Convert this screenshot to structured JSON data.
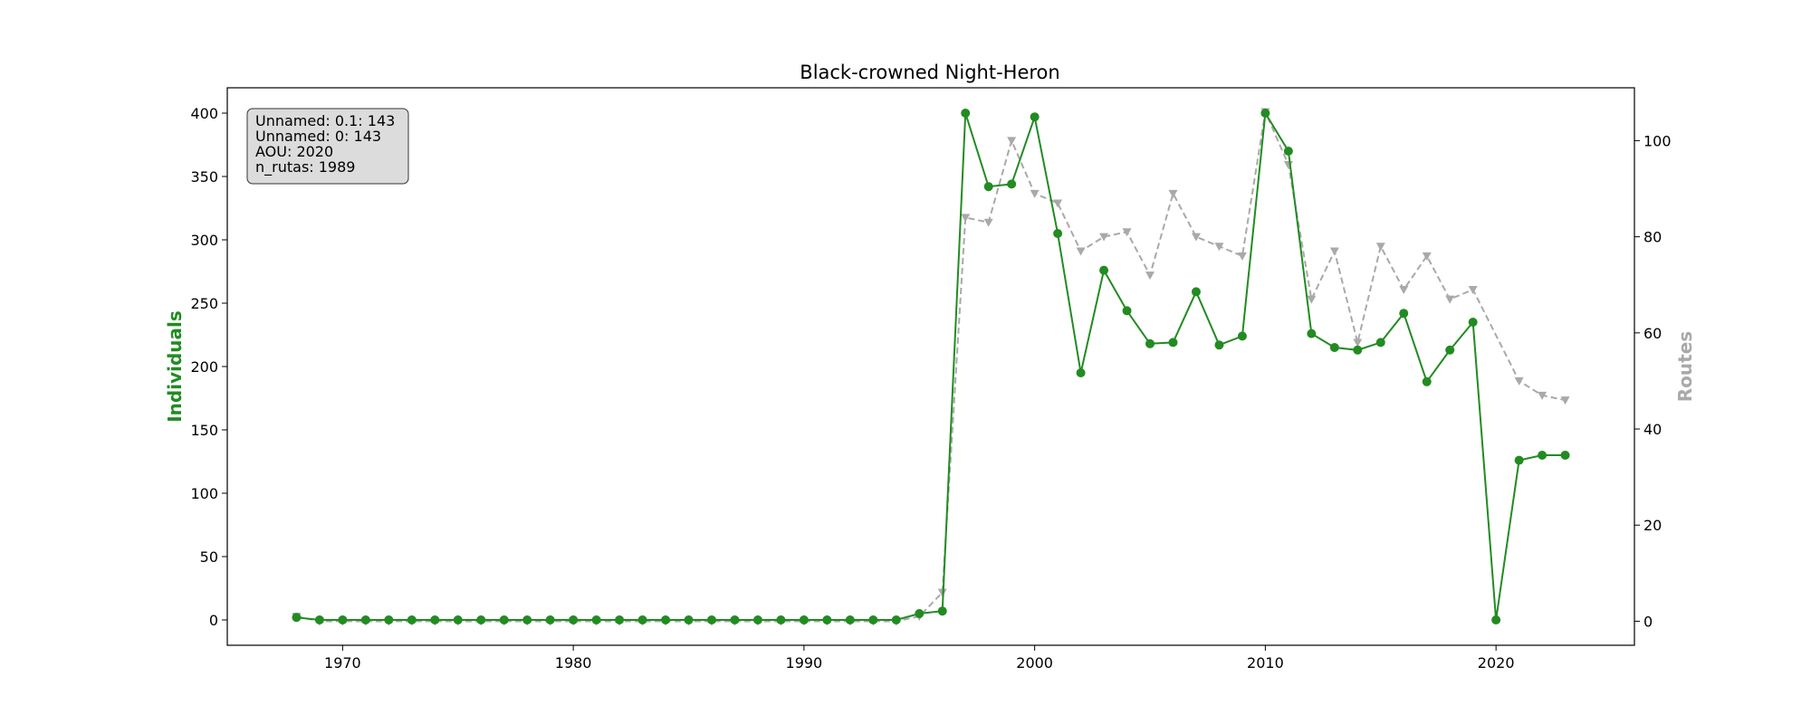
{
  "chart_data": {
    "type": "line",
    "title": "Black-crowned Night-Heron",
    "xlabel": "",
    "ylabel_left": "Individuals",
    "ylabel_right": "Routes",
    "xlim": [
      1965,
      2026
    ],
    "ylim_left": [
      -20,
      420
    ],
    "ylim_right": [
      -5,
      111
    ],
    "x_ticks": [
      1970,
      1980,
      1990,
      2000,
      2010,
      2020
    ],
    "y_ticks_left": [
      0,
      50,
      100,
      150,
      200,
      250,
      300,
      350,
      400
    ],
    "y_ticks_right": [
      0,
      20,
      40,
      60,
      80,
      100
    ],
    "grid": false,
    "info_box": {
      "position": "top-left",
      "lines": [
        "Unnamed: 0.1: 143",
        "Unnamed: 0: 143",
        "AOU: 2020",
        "n_rutas: 1989"
      ]
    },
    "colors": {
      "individuals": "#228b22",
      "routes": "#a9a9a9",
      "info_box_fill": "#dcdcdc"
    },
    "x": [
      1968,
      1969,
      1970,
      1971,
      1972,
      1973,
      1974,
      1975,
      1976,
      1977,
      1978,
      1979,
      1980,
      1981,
      1982,
      1983,
      1984,
      1985,
      1986,
      1987,
      1988,
      1989,
      1990,
      1991,
      1992,
      1993,
      1994,
      1995,
      1996,
      1997,
      1998,
      1999,
      2000,
      2001,
      2002,
      2003,
      2004,
      2005,
      2006,
      2007,
      2008,
      2009,
      2010,
      2011,
      2012,
      2013,
      2014,
      2015,
      2016,
      2017,
      2018,
      2019,
      2020,
      2021,
      2022,
      2023
    ],
    "series": [
      {
        "axis": "left",
        "marker": "circle",
        "style": "solid",
        "values": [
          2,
          0,
          0,
          0,
          0,
          0,
          0,
          0,
          0,
          0,
          0,
          0,
          0,
          0,
          0,
          0,
          0,
          0,
          0,
          0,
          0,
          0,
          0,
          0,
          0,
          0,
          0,
          5,
          7,
          400,
          342,
          344,
          397,
          305,
          195,
          276,
          244,
          218,
          219,
          259,
          217,
          224,
          400,
          370,
          226,
          215,
          213,
          219,
          242,
          188,
          213,
          235,
          0,
          126,
          130,
          130
        ]
      },
      {
        "axis": "right",
        "marker": "triangle-down",
        "style": "dashed",
        "values": [
          1,
          0,
          0,
          0,
          0,
          0,
          0,
          0,
          0,
          0,
          0,
          0,
          0,
          0,
          0,
          0,
          0,
          0,
          0,
          0,
          0,
          0,
          0,
          0,
          0,
          0,
          0,
          1,
          6,
          84,
          83,
          100,
          89,
          87,
          77,
          80,
          81,
          72,
          89,
          80,
          78,
          76,
          106,
          95,
          67,
          77,
          58,
          78,
          69,
          76,
          67,
          69,
          null,
          50,
          47,
          46
        ]
      }
    ]
  }
}
